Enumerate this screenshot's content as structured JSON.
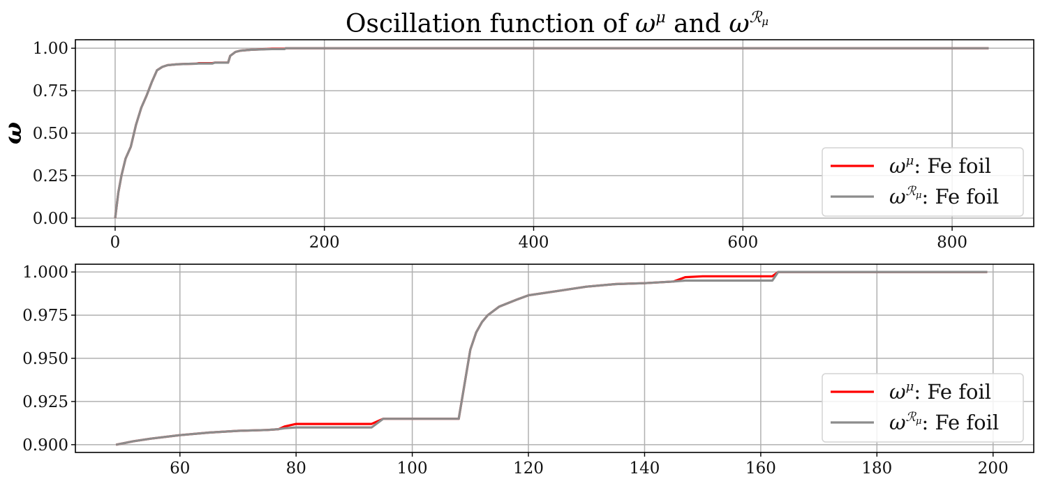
{
  "title": "Oscillation function of ω^μ and ω^ℛμ",
  "title_parts": {
    "prefix": "Oscillation function of ",
    "sym1": "ω",
    "sup1": "μ",
    "mid": " and ",
    "sym2": "ω",
    "sup2": "ℛ",
    "sup2_sub": "μ"
  },
  "colors": {
    "red_series": "#ff0000",
    "gray_series": "#8c8c8c",
    "grid": "#b0b0b0"
  },
  "chart_data": [
    {
      "type": "line",
      "ylabel": "ω",
      "xlabel": "",
      "xlim": [
        -38,
        878
      ],
      "ylim": [
        -0.05,
        1.05
      ],
      "xticks": [
        0,
        200,
        400,
        600,
        800
      ],
      "xtick_labels": [
        "0",
        "200",
        "400",
        "600",
        "800"
      ],
      "yticks": [
        0.0,
        0.25,
        0.5,
        0.75,
        1.0
      ],
      "ytick_labels": [
        "0.00",
        "0.25",
        "0.50",
        "0.75",
        "1.00"
      ],
      "grid": true,
      "legend_position": "bottom-right",
      "series": [
        {
          "name": "ω^μ: Fe foil",
          "legend_label": {
            "sym": "ω",
            "sup": "μ",
            "sup_sub": "",
            "text": ": Fe foil"
          },
          "color": "#ff0000",
          "x": [
            0,
            3,
            6,
            10,
            15,
            20,
            25,
            30,
            35,
            40,
            45,
            50,
            60,
            70,
            77,
            80,
            93,
            95,
            108,
            110,
            115,
            120,
            130,
            145,
            150,
            162,
            163,
            200,
            400,
            600,
            835
          ],
          "y": [
            0.0,
            0.15,
            0.25,
            0.35,
            0.42,
            0.55,
            0.65,
            0.72,
            0.8,
            0.87,
            0.89,
            0.9,
            0.906,
            0.908,
            0.909,
            0.912,
            0.912,
            0.915,
            0.915,
            0.955,
            0.978,
            0.986,
            0.991,
            0.995,
            0.997,
            0.997,
            1.0,
            1.0,
            1.0,
            1.0,
            1.0
          ]
        },
        {
          "name": "ω^ℛμ: Fe foil",
          "legend_label": {
            "sym": "ω",
            "sup": "ℛ",
            "sup_sub": "μ",
            "text": ": Fe foil"
          },
          "color": "#8c8c8c",
          "x": [
            0,
            3,
            6,
            10,
            15,
            20,
            25,
            30,
            35,
            40,
            45,
            50,
            60,
            70,
            77,
            80,
            93,
            95,
            108,
            110,
            115,
            120,
            130,
            145,
            150,
            162,
            163,
            200,
            400,
            600,
            835
          ],
          "y": [
            0.0,
            0.15,
            0.25,
            0.35,
            0.42,
            0.55,
            0.65,
            0.72,
            0.8,
            0.87,
            0.89,
            0.9,
            0.906,
            0.908,
            0.909,
            0.91,
            0.91,
            0.915,
            0.915,
            0.955,
            0.978,
            0.986,
            0.991,
            0.994,
            0.995,
            0.995,
            1.0,
            1.0,
            1.0,
            1.0,
            1.0
          ]
        }
      ]
    },
    {
      "type": "line",
      "ylabel": "",
      "xlabel": "",
      "xlim": [
        42,
        207
      ],
      "ylim": [
        0.8955,
        1.0045
      ],
      "xticks": [
        60,
        80,
        100,
        120,
        140,
        160,
        180,
        200
      ],
      "xtick_labels": [
        "60",
        "80",
        "100",
        "120",
        "140",
        "160",
        "180",
        "200"
      ],
      "yticks": [
        0.9,
        0.925,
        0.95,
        0.975,
        1.0
      ],
      "ytick_labels": [
        "0.900",
        "0.925",
        "0.950",
        "0.975",
        "1.000"
      ],
      "grid": true,
      "legend_position": "bottom-right",
      "series": [
        {
          "name": "ω^μ: Fe foil",
          "legend_label": {
            "sym": "ω",
            "sup": "μ",
            "sup_sub": "",
            "text": ": Fe foil"
          },
          "color": "#ff0000",
          "x": [
            49,
            52,
            55,
            60,
            65,
            70,
            75,
            77,
            78,
            80,
            93,
            95,
            108,
            109,
            110,
            111,
            112,
            113,
            115,
            118,
            120,
            125,
            130,
            135,
            140,
            145,
            147,
            150,
            155,
            162,
            163,
            165,
            180,
            199
          ],
          "y": [
            0.9,
            0.902,
            0.9035,
            0.9055,
            0.907,
            0.908,
            0.9085,
            0.909,
            0.9105,
            0.912,
            0.912,
            0.915,
            0.915,
            0.935,
            0.955,
            0.965,
            0.971,
            0.975,
            0.98,
            0.984,
            0.9865,
            0.989,
            0.9915,
            0.993,
            0.9935,
            0.9945,
            0.997,
            0.9975,
            0.9975,
            0.9975,
            1.0,
            1.0,
            1.0,
            1.0
          ]
        },
        {
          "name": "ω^ℛμ: Fe foil",
          "legend_label": {
            "sym": "ω",
            "sup": "ℛ",
            "sup_sub": "μ",
            "text": ": Fe foil"
          },
          "color": "#8c8c8c",
          "x": [
            49,
            52,
            55,
            60,
            65,
            70,
            75,
            77,
            78,
            80,
            93,
            95,
            108,
            109,
            110,
            111,
            112,
            113,
            115,
            118,
            120,
            125,
            130,
            135,
            140,
            145,
            147,
            150,
            155,
            162,
            163,
            165,
            180,
            199
          ],
          "y": [
            0.9,
            0.902,
            0.9035,
            0.9055,
            0.907,
            0.908,
            0.9085,
            0.909,
            0.9095,
            0.91,
            0.91,
            0.915,
            0.915,
            0.935,
            0.955,
            0.965,
            0.971,
            0.975,
            0.98,
            0.984,
            0.9865,
            0.989,
            0.9915,
            0.993,
            0.9935,
            0.9945,
            0.995,
            0.995,
            0.995,
            0.995,
            1.0,
            1.0,
            1.0,
            1.0
          ]
        }
      ]
    }
  ]
}
